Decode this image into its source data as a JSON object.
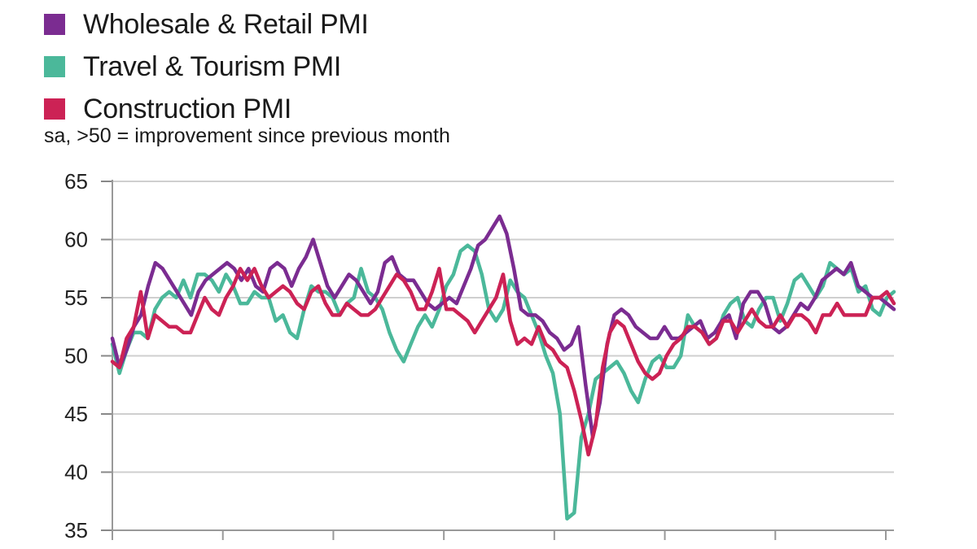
{
  "subtitle": "sa, >50 = improvement since previous month",
  "chart_data": {
    "type": "line",
    "title": "",
    "xlabel": "",
    "ylabel": "",
    "ylim": [
      35,
      65
    ],
    "yticks": [
      "65",
      "60",
      "55",
      "50",
      "45",
      "40",
      "35"
    ],
    "grid": true,
    "legend_position": "top-left",
    "series": [
      {
        "name": "Wholesale & Retail PMI",
        "color": "#7B2C91",
        "values": [
          51.5,
          49.0,
          50.5,
          52.5,
          53.5,
          56.0,
          58.0,
          57.5,
          56.5,
          55.5,
          54.5,
          53.5,
          55.5,
          56.5,
          57.0,
          57.5,
          58.0,
          57.5,
          56.5,
          57.5,
          56.0,
          55.5,
          57.5,
          58.0,
          57.5,
          56.0,
          57.5,
          58.5,
          60.0,
          58.0,
          56.0,
          55.0,
          56.0,
          57.0,
          56.5,
          55.5,
          54.5,
          55.5,
          58.0,
          58.5,
          57.0,
          56.5,
          56.5,
          55.5,
          54.5,
          54.0,
          54.5,
          55.0,
          54.5,
          56.0,
          57.5,
          59.5,
          60.0,
          61.0,
          62.0,
          60.5,
          57.5,
          54.0,
          53.5,
          53.5,
          53.0,
          52.0,
          51.5,
          50.5,
          51.0,
          52.5,
          47.5,
          43.0,
          46.0,
          51.0,
          53.5,
          54.0,
          53.5,
          52.5,
          52.0,
          51.5,
          51.5,
          52.5,
          51.5,
          51.5,
          52.0,
          52.5,
          53.0,
          51.5,
          52.0,
          53.0,
          53.5,
          51.5,
          54.5,
          55.5,
          55.5,
          54.5,
          52.5,
          52.0,
          52.5,
          53.5,
          54.5,
          54.0,
          55.0,
          56.5,
          57.0,
          57.5,
          57.0,
          58.0,
          56.0,
          55.5,
          55.0,
          55.0,
          54.5,
          54.0
        ]
      },
      {
        "name": "Travel & Tourism PMI",
        "color": "#4BB89A",
        "values": [
          51.0,
          48.5,
          50.5,
          52.0,
          52.0,
          51.5,
          54.0,
          55.0,
          55.5,
          55.0,
          56.5,
          55.0,
          57.0,
          57.0,
          56.5,
          55.5,
          57.0,
          56.0,
          54.5,
          54.5,
          55.5,
          55.0,
          55.0,
          53.0,
          53.5,
          52.0,
          51.5,
          54.0,
          56.0,
          55.5,
          55.5,
          55.0,
          53.5,
          54.5,
          55.0,
          57.5,
          55.5,
          55.0,
          54.0,
          52.0,
          50.5,
          49.5,
          51.0,
          52.5,
          53.5,
          52.5,
          54.0,
          56.0,
          57.0,
          59.0,
          59.5,
          59.0,
          57.0,
          54.0,
          53.0,
          54.0,
          56.5,
          55.5,
          55.0,
          53.5,
          52.0,
          50.0,
          48.5,
          45.0,
          36.0,
          36.5,
          43.0,
          45.0,
          48.0,
          48.5,
          49.0,
          49.5,
          48.5,
          47.0,
          46.0,
          48.0,
          49.5,
          50.0,
          49.0,
          49.0,
          50.0,
          53.5,
          52.5,
          52.0,
          51.0,
          51.5,
          53.5,
          54.5,
          55.0,
          53.0,
          52.5,
          54.0,
          55.0,
          55.0,
          53.0,
          54.5,
          56.5,
          57.0,
          56.0,
          55.0,
          56.0,
          58.0,
          57.5,
          57.0,
          57.5,
          55.5,
          56.0,
          54.0,
          53.5,
          55.0,
          55.5
        ]
      },
      {
        "name": "Construction PMI",
        "color": "#CC2255",
        "values": [
          49.5,
          49.0,
          51.5,
          52.5,
          55.5,
          51.5,
          53.5,
          53.0,
          52.5,
          52.5,
          52.0,
          52.0,
          53.5,
          55.0,
          54.0,
          53.5,
          55.0,
          56.0,
          57.5,
          56.5,
          57.5,
          56.0,
          55.0,
          55.5,
          56.0,
          55.5,
          54.5,
          54.0,
          55.5,
          56.0,
          54.5,
          53.5,
          53.5,
          54.5,
          54.0,
          53.5,
          53.5,
          54.0,
          55.0,
          56.0,
          57.0,
          56.5,
          55.5,
          54.0,
          54.0,
          55.5,
          57.5,
          54.0,
          54.0,
          53.5,
          53.0,
          52.0,
          53.0,
          54.0,
          55.0,
          57.0,
          53.0,
          51.0,
          51.5,
          51.0,
          52.5,
          51.0,
          50.5,
          49.5,
          49.0,
          47.0,
          44.5,
          41.5,
          44.0,
          49.0,
          52.0,
          53.0,
          52.5,
          51.0,
          49.5,
          48.5,
          48.0,
          48.5,
          50.0,
          51.0,
          51.5,
          52.5,
          52.5,
          52.0,
          51.0,
          51.5,
          53.0,
          53.0,
          52.0,
          53.0,
          54.0,
          53.0,
          52.5,
          52.5,
          53.5,
          52.5,
          53.5,
          53.5,
          53.0,
          52.0,
          53.5,
          53.5,
          54.5,
          53.5,
          53.5,
          53.5,
          53.5,
          55.0,
          55.0,
          55.5,
          54.5
        ]
      }
    ]
  }
}
